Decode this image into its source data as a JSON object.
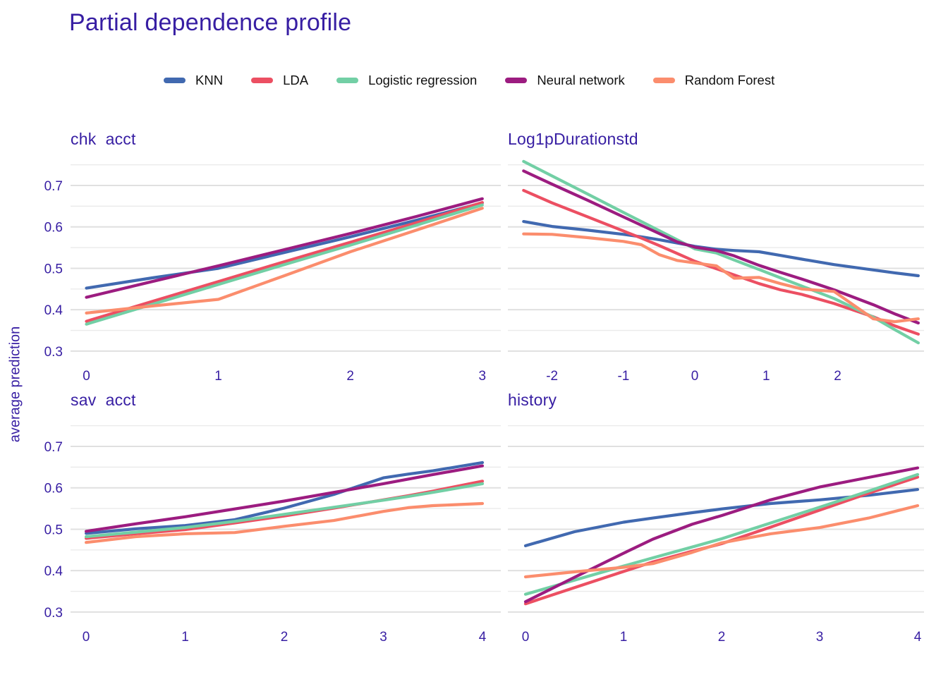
{
  "title": "Partial dependence profile",
  "y_axis_label": "average prediction",
  "colors": {
    "text": "#371ea3",
    "legend_text": "#111111",
    "grid_major": "#e0e0e0",
    "grid_minor": "#ebebeb",
    "background": "#ffffff"
  },
  "legend": {
    "position": "top",
    "items": [
      "KNN",
      "LDA",
      "Logistic regression",
      "Neural network",
      "Random Forest"
    ]
  },
  "chart_data": {
    "type": "line",
    "title": "Partial dependence profile",
    "ylabel": "average prediction",
    "grid": "horizontal gridlines only, no axis lines, no tick marks",
    "legend_position": "top",
    "ylim": [
      0.276,
      0.7596
    ],
    "y_major_ticks": [
      0.7,
      0.6,
      0.5,
      0.4,
      0.3
    ],
    "y_minor_ticks": [
      0.75,
      0.65,
      0.55,
      0.45,
      0.35
    ],
    "series_colors": {
      "KNN": "#4169b0",
      "LDA": "#ec4f62",
      "Logistic regression": "#72cfa5",
      "Neural network": "#9c1c80",
      "Random Forest": "#fb8d6d"
    },
    "panels": [
      {
        "id": "chk-acct",
        "title": "chk  acct",
        "xlim": [
          -0.12,
          3.14
        ],
        "x_ticks": [
          0,
          1,
          2,
          3
        ],
        "show_y_tick_labels": true,
        "series": [
          {
            "name": "KNN",
            "x": [
              0,
              0.5,
              1,
              1.5,
              2,
              2.5,
              3
            ],
            "y": [
              0.452,
              0.477,
              0.5,
              0.538,
              0.576,
              0.616,
              0.658
            ]
          },
          {
            "name": "LDA",
            "x": [
              0,
              0.5,
              1,
              1.5,
              2,
              2.5,
              3
            ],
            "y": [
              0.372,
              0.42,
              0.468,
              0.516,
              0.563,
              0.61,
              0.659
            ]
          },
          {
            "name": "Logistic regression",
            "x": [
              0,
              0.5,
              1,
              1.5,
              2,
              2.5,
              3
            ],
            "y": [
              0.365,
              0.413,
              0.461,
              0.509,
              0.556,
              0.604,
              0.653
            ]
          },
          {
            "name": "Neural network",
            "x": [
              0,
              0.5,
              1,
              1.5,
              2,
              2.5,
              3
            ],
            "y": [
              0.43,
              0.468,
              0.506,
              0.545,
              0.584,
              0.625,
              0.668
            ]
          },
          {
            "name": "Random Forest",
            "x": [
              0,
              0.5,
              1,
              1.5,
              2,
              2.5,
              3
            ],
            "y": [
              0.392,
              0.409,
              0.425,
              0.482,
              0.54,
              0.592,
              0.645
            ]
          }
        ]
      },
      {
        "id": "log1p-duration-std",
        "title": "Log1pDurationstd",
        "xlim": [
          -2.62,
          3.21
        ],
        "x_ticks": [
          -2,
          -1,
          0,
          1,
          2
        ],
        "show_y_tick_labels": false,
        "series": [
          {
            "name": "KNN",
            "x": [
              -2.4,
              -2,
              -1.5,
              -1,
              -0.75,
              -0.5,
              -0.25,
              0,
              0.3,
              0.55,
              0.9,
              1.2,
              1.5,
              1.95,
              2.5,
              2.8,
              3.13
            ],
            "y": [
              0.613,
              0.601,
              0.592,
              0.582,
              0.576,
              0.569,
              0.561,
              0.553,
              0.546,
              0.543,
              0.54,
              0.531,
              0.522,
              0.509,
              0.496,
              0.489,
              0.482
            ]
          },
          {
            "name": "LDA",
            "x": [
              -2.4,
              -2,
              -1.5,
              -1,
              -0.75,
              -0.5,
              -0.25,
              0,
              0.3,
              0.55,
              0.9,
              1.2,
              1.5,
              1.95,
              2.5,
              2.8,
              3.13
            ],
            "y": [
              0.688,
              0.658,
              0.624,
              0.59,
              0.573,
              0.555,
              0.536,
              0.517,
              0.499,
              0.484,
              0.463,
              0.448,
              0.437,
              0.415,
              0.383,
              0.361,
              0.341
            ]
          },
          {
            "name": "Logistic regression",
            "x": [
              -2.4,
              -2,
              -1.5,
              -1,
              -0.75,
              -0.5,
              -0.25,
              0,
              0.3,
              0.55,
              0.9,
              1.2,
              1.5,
              1.95,
              2.5,
              2.8,
              3.13
            ],
            "y": [
              0.758,
              0.723,
              0.679,
              0.635,
              0.613,
              0.591,
              0.569,
              0.547,
              0.537,
              0.52,
              0.497,
              0.477,
              0.457,
              0.427,
              0.382,
              0.352,
              0.32
            ]
          },
          {
            "name": "Neural network",
            "x": [
              -2.4,
              -2,
              -1.5,
              -1,
              -0.75,
              -0.5,
              -0.25,
              0,
              0.3,
              0.55,
              0.9,
              1.2,
              1.5,
              1.95,
              2.5,
              2.8,
              3.13
            ],
            "y": [
              0.735,
              0.703,
              0.664,
              0.624,
              0.604,
              0.584,
              0.564,
              0.551,
              0.543,
              0.53,
              0.507,
              0.49,
              0.474,
              0.448,
              0.412,
              0.39,
              0.368
            ]
          },
          {
            "name": "Random Forest",
            "x": [
              -2.4,
              -2,
              -1.5,
              -1,
              -0.75,
              -0.5,
              -0.25,
              0,
              0.3,
              0.55,
              0.9,
              1.2,
              1.5,
              1.95,
              2.5,
              2.8,
              3.13
            ],
            "y": [
              0.583,
              0.582,
              0.574,
              0.565,
              0.557,
              0.533,
              0.519,
              0.513,
              0.506,
              0.476,
              0.478,
              0.463,
              0.45,
              0.444,
              0.378,
              0.371,
              0.378
            ]
          }
        ]
      },
      {
        "id": "sav-acct",
        "title": "sav  acct",
        "xlim": [
          -0.157,
          4.185
        ],
        "x_ticks": [
          0,
          1,
          2,
          3,
          4
        ],
        "show_y_tick_labels": true,
        "series": [
          {
            "name": "KNN",
            "x": [
              0,
              0.5,
              1,
              1.5,
              2,
              2.5,
              3,
              3.25,
              3.5,
              4
            ],
            "y": [
              0.49,
              0.501,
              0.509,
              0.523,
              0.551,
              0.584,
              0.624,
              0.633,
              0.641,
              0.661
            ]
          },
          {
            "name": "LDA",
            "x": [
              0,
              0.5,
              1,
              1.5,
              2,
              2.5,
              3,
              3.25,
              3.5,
              4
            ],
            "y": [
              0.478,
              0.489,
              0.499,
              0.515,
              0.532,
              0.551,
              0.571,
              0.581,
              0.592,
              0.616
            ]
          },
          {
            "name": "Logistic regression",
            "x": [
              0,
              0.5,
              1,
              1.5,
              2,
              2.5,
              3,
              3.25,
              3.5,
              4
            ],
            "y": [
              0.482,
              0.493,
              0.504,
              0.519,
              0.536,
              0.553,
              0.57,
              0.579,
              0.589,
              0.61
            ]
          },
          {
            "name": "Neural network",
            "x": [
              0,
              0.5,
              1,
              1.5,
              2,
              2.5,
              3,
              3.25,
              3.5,
              4
            ],
            "y": [
              0.495,
              0.513,
              0.53,
              0.549,
              0.568,
              0.589,
              0.61,
              0.621,
              0.632,
              0.653
            ]
          },
          {
            "name": "Random Forest",
            "x": [
              0,
              0.5,
              1,
              1.5,
              2,
              2.5,
              3,
              3.25,
              3.5,
              4
            ],
            "y": [
              0.468,
              0.482,
              0.489,
              0.492,
              0.507,
              0.521,
              0.543,
              0.552,
              0.557,
              0.562
            ]
          }
        ]
      },
      {
        "id": "history",
        "title": "history",
        "xlim": [
          -0.18,
          4.065
        ],
        "x_ticks": [
          0,
          1,
          2,
          3,
          4
        ],
        "show_y_tick_labels": false,
        "series": [
          {
            "name": "KNN",
            "x": [
              0,
              0.5,
              1,
              1.3,
              1.7,
              2,
              2.5,
              3,
              3.5,
              4
            ],
            "y": [
              0.46,
              0.494,
              0.517,
              0.527,
              0.54,
              0.549,
              0.562,
              0.571,
              0.582,
              0.596
            ]
          },
          {
            "name": "LDA",
            "x": [
              0,
              0.5,
              1,
              1.3,
              1.7,
              2,
              2.5,
              3,
              3.5,
              4
            ],
            "y": [
              0.32,
              0.359,
              0.398,
              0.421,
              0.447,
              0.465,
              0.505,
              0.546,
              0.587,
              0.626
            ]
          },
          {
            "name": "Logistic regression",
            "x": [
              0,
              0.5,
              1,
              1.3,
              1.7,
              2,
              2.5,
              3,
              3.5,
              4
            ],
            "y": [
              0.343,
              0.377,
              0.411,
              0.431,
              0.457,
              0.477,
              0.515,
              0.553,
              0.592,
              0.632
            ]
          },
          {
            "name": "Neural network",
            "x": [
              0,
              0.5,
              1,
              1.3,
              1.7,
              2,
              2.5,
              3,
              3.5,
              4
            ],
            "y": [
              0.325,
              0.384,
              0.442,
              0.476,
              0.512,
              0.533,
              0.571,
              0.602,
              0.625,
              0.648
            ]
          },
          {
            "name": "Random Forest",
            "x": [
              0,
              0.5,
              1,
              1.3,
              1.7,
              2,
              2.5,
              3,
              3.5,
              4
            ],
            "y": [
              0.385,
              0.397,
              0.408,
              0.417,
              0.444,
              0.467,
              0.489,
              0.504,
              0.527,
              0.557
            ]
          }
        ]
      }
    ]
  }
}
